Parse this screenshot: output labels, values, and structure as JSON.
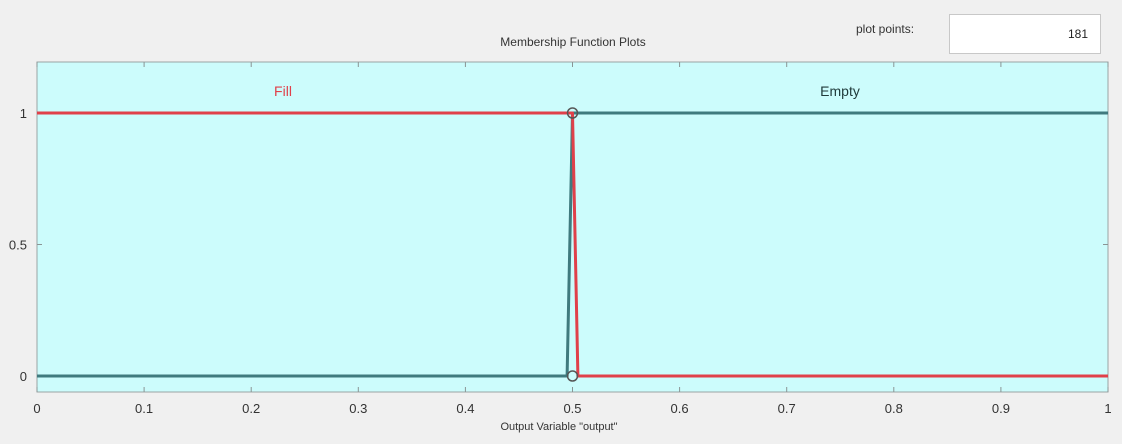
{
  "header": {
    "title": "Membership Function Plots",
    "plot_points_label": "plot points:",
    "plot_points_value": "181"
  },
  "colors": {
    "plot_background": "#ccfcfc",
    "selected_mf": "#e0404a",
    "unselected_mf": "#3f7a7e"
  },
  "chart_data": {
    "type": "line",
    "title": "Membership Function Plots",
    "xlabel": "Output Variable \"output\"",
    "ylabel": "",
    "xlim": [
      0,
      1
    ],
    "ylim": [
      0,
      1
    ],
    "xticks": [
      "0",
      "0.1",
      "0.2",
      "0.3",
      "0.4",
      "0.5",
      "0.6",
      "0.7",
      "0.8",
      "0.9",
      "1"
    ],
    "yticks": [
      "0",
      "0.5",
      "1"
    ],
    "grid": false,
    "series": [
      {
        "name": "Fill",
        "selected": true,
        "points": [
          [
            0,
            1
          ],
          [
            0.5,
            1
          ],
          [
            0.505,
            0
          ],
          [
            1,
            0
          ]
        ]
      },
      {
        "name": "Empty",
        "selected": false,
        "points": [
          [
            0,
            0
          ],
          [
            0.495,
            0
          ],
          [
            0.5,
            1
          ],
          [
            1,
            1
          ]
        ]
      }
    ]
  }
}
